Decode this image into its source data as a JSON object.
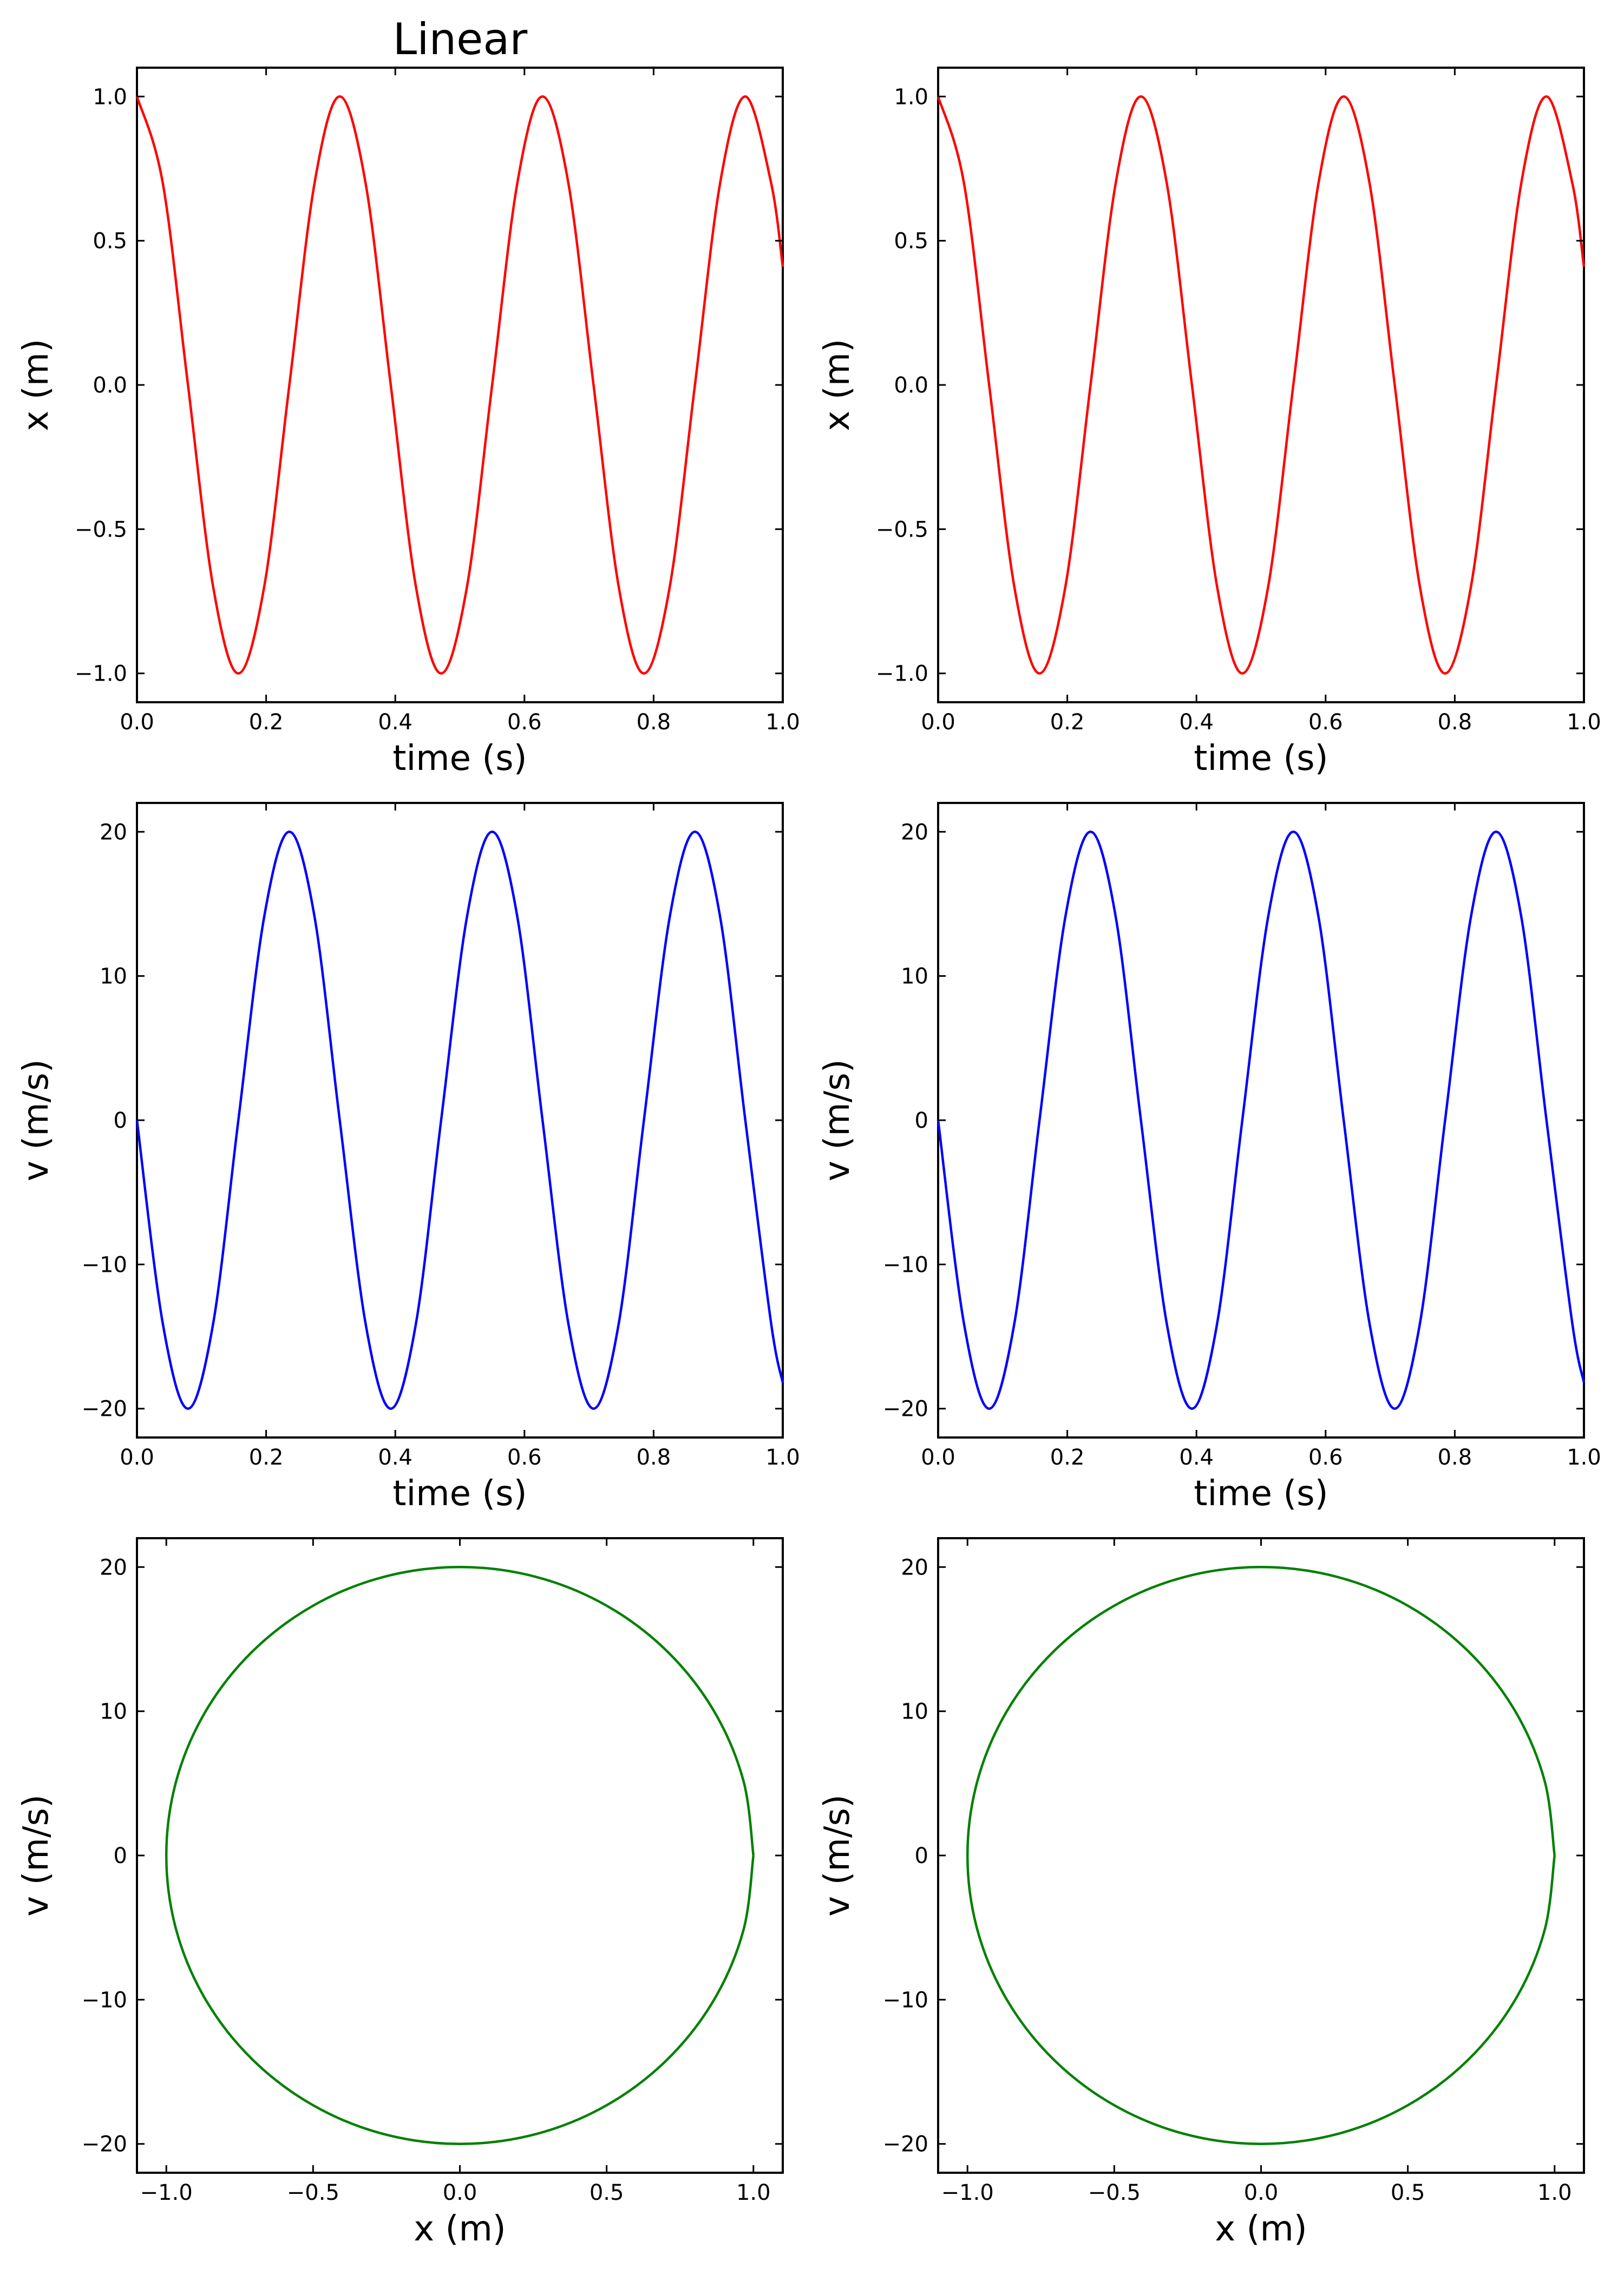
{
  "figure": {
    "title": "Linear"
  },
  "chart_data": [
    {
      "panel": "row1-left",
      "type": "line",
      "title": "Linear",
      "xlabel": "time (s)",
      "ylabel": "x (m)",
      "xlim": [
        0.0,
        1.0
      ],
      "ylim": [
        -1.1,
        1.1
      ],
      "xticks": [
        0.0,
        0.2,
        0.4,
        0.6,
        0.8,
        1.0
      ],
      "xtick_labels": [
        "0.0",
        "0.2",
        "0.4",
        "0.6",
        "0.8",
        "1.0"
      ],
      "yticks": [
        -1.0,
        -0.5,
        0.0,
        0.5,
        1.0
      ],
      "ytick_labels": [
        "−1.0",
        "−0.5",
        "0.0",
        "0.5",
        "1.0"
      ],
      "grid": false,
      "series": [
        {
          "color": "#ff0000",
          "x": [
            0.0,
            0.04,
            0.079,
            0.118,
            0.157,
            0.197,
            0.236,
            0.275,
            0.314,
            0.354,
            0.393,
            0.432,
            0.471,
            0.511,
            0.55,
            0.589,
            0.628,
            0.668,
            0.707,
            0.746,
            0.785,
            0.825,
            0.864,
            0.903,
            0.942,
            0.982,
            1.0
          ],
          "y": [
            1.0,
            0.7,
            0.0,
            -0.7,
            -1.0,
            -0.7,
            0.0,
            0.7,
            1.0,
            0.7,
            0.0,
            -0.7,
            -1.0,
            -0.7,
            0.0,
            0.7,
            1.0,
            0.7,
            0.0,
            -0.7,
            -1.0,
            -0.7,
            0.0,
            0.7,
            1.0,
            0.7,
            0.41
          ]
        }
      ]
    },
    {
      "panel": "row1-right",
      "type": "line",
      "title": "",
      "xlabel": "time (s)",
      "ylabel": "x (m)",
      "xlim": [
        0.0,
        1.0
      ],
      "ylim": [
        -1.1,
        1.1
      ],
      "xticks": [
        0.0,
        0.2,
        0.4,
        0.6,
        0.8,
        1.0
      ],
      "xtick_labels": [
        "0.0",
        "0.2",
        "0.4",
        "0.6",
        "0.8",
        "1.0"
      ],
      "yticks": [
        -1.0,
        -0.5,
        0.0,
        0.5,
        1.0
      ],
      "ytick_labels": [
        "−1.0",
        "−0.5",
        "0.0",
        "0.5",
        "1.0"
      ],
      "grid": false,
      "series": [
        {
          "color": "#ff0000",
          "x": [
            0.0,
            0.04,
            0.079,
            0.118,
            0.157,
            0.197,
            0.236,
            0.275,
            0.314,
            0.354,
            0.393,
            0.432,
            0.471,
            0.511,
            0.55,
            0.589,
            0.628,
            0.668,
            0.707,
            0.746,
            0.785,
            0.825,
            0.864,
            0.903,
            0.942,
            0.982,
            1.0
          ],
          "y": [
            1.0,
            0.7,
            0.0,
            -0.7,
            -1.0,
            -0.7,
            0.0,
            0.7,
            1.0,
            0.7,
            0.0,
            -0.7,
            -1.0,
            -0.7,
            0.0,
            0.7,
            1.0,
            0.7,
            0.0,
            -0.7,
            -1.0,
            -0.7,
            0.0,
            0.7,
            1.0,
            0.7,
            0.41
          ]
        }
      ]
    },
    {
      "panel": "row2-left",
      "type": "line",
      "title": "",
      "xlabel": "time (s)",
      "ylabel": "v (m/s)",
      "xlim": [
        0.0,
        1.0
      ],
      "ylim": [
        -22,
        22
      ],
      "xticks": [
        0.0,
        0.2,
        0.4,
        0.6,
        0.8,
        1.0
      ],
      "xtick_labels": [
        "0.0",
        "0.2",
        "0.4",
        "0.6",
        "0.8",
        "1.0"
      ],
      "yticks": [
        -20,
        -10,
        0,
        10,
        20
      ],
      "ytick_labels": [
        "−20",
        "−10",
        "0",
        "10",
        "20"
      ],
      "grid": false,
      "series": [
        {
          "color": "#0000ff",
          "x": [
            0.0,
            0.04,
            0.079,
            0.118,
            0.157,
            0.197,
            0.236,
            0.275,
            0.314,
            0.354,
            0.393,
            0.432,
            0.471,
            0.511,
            0.55,
            0.589,
            0.628,
            0.668,
            0.707,
            0.746,
            0.785,
            0.825,
            0.864,
            0.903,
            0.942,
            0.982,
            1.0
          ],
          "y": [
            0,
            -14.1,
            -20,
            -14.1,
            0,
            14.1,
            20,
            14.1,
            0,
            -14.1,
            -20,
            -14.1,
            0,
            14.1,
            20,
            14.1,
            0,
            -14.1,
            -20,
            -14.1,
            0,
            14.1,
            20,
            14.1,
            0,
            -14.1,
            -18.2
          ]
        }
      ]
    },
    {
      "panel": "row2-right",
      "type": "line",
      "title": "",
      "xlabel": "time (s)",
      "ylabel": "v (m/s)",
      "xlim": [
        0.0,
        1.0
      ],
      "ylim": [
        -22,
        22
      ],
      "xticks": [
        0.0,
        0.2,
        0.4,
        0.6,
        0.8,
        1.0
      ],
      "xtick_labels": [
        "0.0",
        "0.2",
        "0.4",
        "0.6",
        "0.8",
        "1.0"
      ],
      "yticks": [
        -20,
        -10,
        0,
        10,
        20
      ],
      "ytick_labels": [
        "−20",
        "−10",
        "0",
        "10",
        "20"
      ],
      "grid": false,
      "series": [
        {
          "color": "#0000ff",
          "x": [
            0.0,
            0.04,
            0.079,
            0.118,
            0.157,
            0.197,
            0.236,
            0.275,
            0.314,
            0.354,
            0.393,
            0.432,
            0.471,
            0.511,
            0.55,
            0.589,
            0.628,
            0.668,
            0.707,
            0.746,
            0.785,
            0.825,
            0.864,
            0.903,
            0.942,
            0.982,
            1.0
          ],
          "y": [
            0,
            -14.1,
            -20,
            -14.1,
            0,
            14.1,
            20,
            14.1,
            0,
            -14.1,
            -20,
            -14.1,
            0,
            14.1,
            20,
            14.1,
            0,
            -14.1,
            -20,
            -14.1,
            0,
            14.1,
            20,
            14.1,
            0,
            -14.1,
            -18.2
          ]
        }
      ]
    },
    {
      "panel": "row3-left",
      "type": "line",
      "title": "",
      "xlabel": "x (m)",
      "ylabel": "v (m/s)",
      "xlim": [
        -1.1,
        1.1
      ],
      "ylim": [
        -22,
        22
      ],
      "xticks": [
        -1.0,
        -0.5,
        0.0,
        0.5,
        1.0
      ],
      "xtick_labels": [
        "−1.0",
        "−0.5",
        "0.0",
        "0.5",
        "1.0"
      ],
      "yticks": [
        -20,
        -10,
        0,
        10,
        20
      ],
      "ytick_labels": [
        "−20",
        "−10",
        "0",
        "10",
        "20"
      ],
      "grid": false,
      "series": [
        {
          "color": "#008000",
          "x": [
            1.0,
            0.966,
            0.866,
            0.707,
            0.5,
            0.259,
            0.0,
            -0.259,
            -0.5,
            -0.707,
            -0.866,
            -0.966,
            -1.0,
            -0.966,
            -0.866,
            -0.707,
            -0.5,
            -0.259,
            0.0,
            0.259,
            0.5,
            0.707,
            0.866,
            0.966,
            1.0
          ],
          "y": [
            0,
            -5.18,
            -10.0,
            -14.14,
            -17.32,
            -19.32,
            -20.0,
            -19.32,
            -17.32,
            -14.14,
            -10.0,
            -5.18,
            0,
            5.18,
            10.0,
            14.14,
            17.32,
            19.32,
            20.0,
            19.32,
            17.32,
            14.14,
            10.0,
            5.18,
            0
          ]
        }
      ]
    },
    {
      "panel": "row3-right",
      "type": "line",
      "title": "",
      "xlabel": "x (m)",
      "ylabel": "v (m/s)",
      "xlim": [
        -1.1,
        1.1
      ],
      "ylim": [
        -22,
        22
      ],
      "xticks": [
        -1.0,
        -0.5,
        0.0,
        0.5,
        1.0
      ],
      "xtick_labels": [
        "−1.0",
        "−0.5",
        "0.0",
        "0.5",
        "1.0"
      ],
      "yticks": [
        -20,
        -10,
        0,
        10,
        20
      ],
      "ytick_labels": [
        "−20",
        "−10",
        "0",
        "10",
        "20"
      ],
      "grid": false,
      "series": [
        {
          "color": "#008000",
          "x": [
            1.0,
            0.966,
            0.866,
            0.707,
            0.5,
            0.259,
            0.0,
            -0.259,
            -0.5,
            -0.707,
            -0.866,
            -0.966,
            -1.0,
            -0.966,
            -0.866,
            -0.707,
            -0.5,
            -0.259,
            0.0,
            0.259,
            0.5,
            0.707,
            0.866,
            0.966,
            1.0
          ],
          "y": [
            0,
            -5.18,
            -10.0,
            -14.14,
            -17.32,
            -19.32,
            -20.0,
            -19.32,
            -17.32,
            -14.14,
            -10.0,
            -5.18,
            0,
            5.18,
            10.0,
            14.14,
            17.32,
            19.32,
            20.0,
            19.32,
            17.32,
            14.14,
            10.0,
            5.18,
            0
          ]
        }
      ]
    }
  ]
}
